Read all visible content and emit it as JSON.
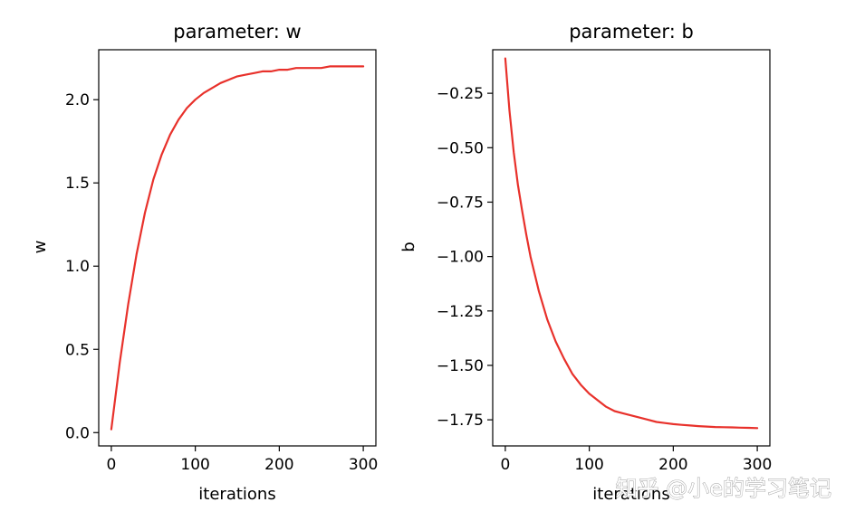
{
  "chart_data": [
    {
      "type": "line",
      "title": "parameter: w",
      "xlabel": "iterations",
      "ylabel": "w",
      "xlim": [
        -15,
        315
      ],
      "ylim": [
        -0.08,
        2.3
      ],
      "xticks": [
        0,
        100,
        200,
        300
      ],
      "xtick_labels": [
        "0",
        "100",
        "200",
        "300"
      ],
      "yticks": [
        0.0,
        0.5,
        1.0,
        1.5,
        2.0
      ],
      "ytick_labels": [
        "0.0",
        "0.5",
        "1.0",
        "1.5",
        "2.0"
      ],
      "grid": false,
      "series": [
        {
          "color": "#e8312b",
          "x": [
            0,
            10,
            20,
            30,
            40,
            50,
            60,
            70,
            80,
            90,
            100,
            110,
            120,
            130,
            140,
            150,
            160,
            170,
            180,
            190,
            200,
            210,
            220,
            230,
            240,
            250,
            260,
            270,
            280,
            290,
            300
          ],
          "y": [
            0.02,
            0.42,
            0.77,
            1.07,
            1.32,
            1.52,
            1.67,
            1.79,
            1.88,
            1.95,
            2.0,
            2.04,
            2.07,
            2.1,
            2.12,
            2.14,
            2.15,
            2.16,
            2.17,
            2.17,
            2.18,
            2.18,
            2.19,
            2.19,
            2.19,
            2.19,
            2.2,
            2.2,
            2.2,
            2.2,
            2.2
          ]
        }
      ]
    },
    {
      "type": "line",
      "title": "parameter: b",
      "xlabel": "iterations",
      "ylabel": "b",
      "xlim": [
        -15,
        315
      ],
      "ylim": [
        -1.87,
        -0.05
      ],
      "xticks": [
        0,
        100,
        200,
        300
      ],
      "xtick_labels": [
        "0",
        "100",
        "200",
        "300"
      ],
      "yticks": [
        -1.75,
        -1.5,
        -1.25,
        -1.0,
        -0.75,
        -0.5,
        -0.25
      ],
      "ytick_labels": [
        "−1.75",
        "−1.50",
        "−1.25",
        "−1.00",
        "−0.75",
        "−0.50",
        "−0.25"
      ],
      "grid": false,
      "series": [
        {
          "color": "#e8312b",
          "x": [
            0,
            5,
            10,
            15,
            20,
            25,
            30,
            40,
            50,
            60,
            70,
            80,
            90,
            100,
            110,
            120,
            130,
            140,
            150,
            160,
            170,
            180,
            190,
            200,
            210,
            220,
            230,
            240,
            250,
            260,
            270,
            280,
            290,
            300
          ],
          "y": [
            -0.09,
            -0.33,
            -0.52,
            -0.67,
            -0.79,
            -0.9,
            -1.0,
            -1.16,
            -1.29,
            -1.39,
            -1.47,
            -1.54,
            -1.59,
            -1.63,
            -1.66,
            -1.69,
            -1.71,
            -1.72,
            -1.73,
            -1.74,
            -1.75,
            -1.76,
            -1.765,
            -1.77,
            -1.773,
            -1.776,
            -1.779,
            -1.781,
            -1.783,
            -1.784,
            -1.785,
            -1.786,
            -1.787,
            -1.788
          ]
        }
      ]
    }
  ],
  "watermark": "知乎 @小e的学习笔记"
}
